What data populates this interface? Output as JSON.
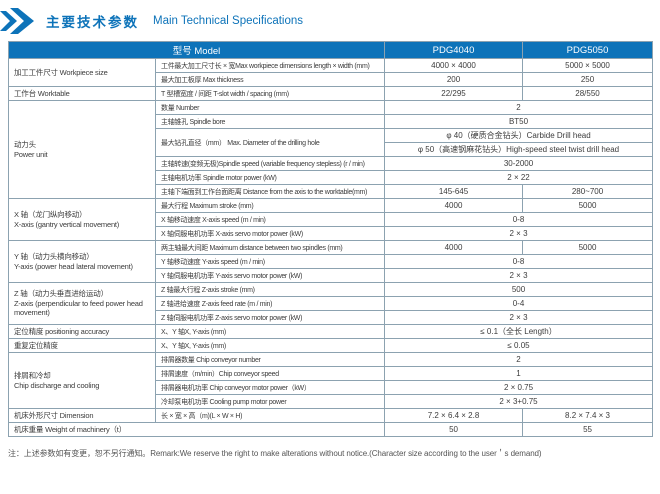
{
  "colors": {
    "brand": "#0d73b9",
    "stripe": "#cddce8",
    "border": "#8ca2b0"
  },
  "title": {
    "zh": "主要技术参数",
    "en": "Main Technical Specifications",
    "icon": "double-chevron-right-icon"
  },
  "table": {
    "header": {
      "model": "型号 Model",
      "col1": "PDG4040",
      "col2": "PDG5050"
    },
    "rows": [
      {
        "s": true,
        "cells": [
          {
            "t": "加工工件尺寸 Workpiece size",
            "r": 2,
            "k": "cats"
          },
          {
            "t": "工件最大加工尺寸长 × 宽Max workpiece dimensions length × width (mm)",
            "k": "spec"
          },
          {
            "t": "4000 × 4000",
            "k": "val"
          },
          {
            "t": "5000 × 5000",
            "k": "val"
          }
        ]
      },
      {
        "s": false,
        "cells": [
          {
            "t": "最大加工板厚 Max thickness",
            "k": "spec"
          },
          {
            "t": "200",
            "k": "val"
          },
          {
            "t": "250",
            "k": "val"
          }
        ]
      },
      {
        "s": true,
        "cells": [
          {
            "t": "工作台 Worktable",
            "k": "cats"
          },
          {
            "t": "T 型槽宽度 / 间距 T-slot width / spacing (mm)",
            "k": "spec"
          },
          {
            "t": "22/295",
            "k": "val"
          },
          {
            "t": "28/550",
            "k": "val"
          }
        ]
      },
      {
        "s": false,
        "cells": [
          {
            "t": "动力头\nPower unit",
            "r": 7,
            "k": "cat"
          },
          {
            "t": "数量 Number",
            "k": "spec"
          },
          {
            "t": "2",
            "c": 2,
            "k": "val"
          }
        ]
      },
      {
        "s": true,
        "cells": [
          {
            "t": "主轴锥孔 Spindle bore",
            "k": "spec"
          },
          {
            "t": "BT50",
            "c": 2,
            "k": "val"
          }
        ]
      },
      {
        "s": false,
        "cells": [
          {
            "t": "最大钻孔直径（mm）\nMax. Diameter of the drilling hole",
            "r": 2,
            "k": "spec"
          },
          {
            "t": "φ 40（硬质合金钻头）Carbide Drill head",
            "c": 2,
            "k": "val"
          }
        ]
      },
      {
        "s": true,
        "cells": [
          {
            "t": "φ 50（高速钢麻花钻头）High-speed steel twist drill head",
            "c": 2,
            "k": "val"
          }
        ]
      },
      {
        "s": false,
        "cells": [
          {
            "t": "主轴转速(变频无极)Spindle speed (variable frequency stepless) (r / min)",
            "k": "spec"
          },
          {
            "t": "30-2000",
            "c": 2,
            "k": "val"
          }
        ]
      },
      {
        "s": true,
        "cells": [
          {
            "t": "主轴电机功率 Spindle motor power (kW)",
            "k": "spec"
          },
          {
            "t": "2 × 22",
            "c": 2,
            "k": "val"
          }
        ]
      },
      {
        "s": false,
        "cells": [
          {
            "t": "主轴下端面到工作台面距离 Distance from the axis to the worktable(mm)",
            "k": "spec"
          },
          {
            "t": "145-645",
            "k": "val"
          },
          {
            "t": "280~700",
            "k": "val"
          }
        ]
      },
      {
        "s": true,
        "cells": [
          {
            "t": "X 轴（龙门纵向移动）\nX-axis (gantry vertical movement)",
            "r": 3,
            "k": "cats"
          },
          {
            "t": "最大行程 Maximum stroke (mm)",
            "k": "spec"
          },
          {
            "t": "4000",
            "k": "val"
          },
          {
            "t": "5000",
            "k": "val"
          }
        ]
      },
      {
        "s": false,
        "cells": [
          {
            "t": "X 轴移动速度 X-axis speed (m / min)",
            "k": "spec"
          },
          {
            "t": "0-8",
            "c": 2,
            "k": "val"
          }
        ]
      },
      {
        "s": true,
        "cells": [
          {
            "t": "X 轴伺服电机功率 X-axis servo motor power (kW)",
            "k": "spec"
          },
          {
            "t": "2 × 3",
            "c": 2,
            "k": "val"
          }
        ]
      },
      {
        "s": false,
        "cells": [
          {
            "t": "Y 轴（动力头横向移动）\nY-axis (power head lateral movement)",
            "r": 3,
            "k": "cat"
          },
          {
            "t": "两主轴最大间距 Maximum distance between two spindles (mm)",
            "k": "spec"
          },
          {
            "t": "4000",
            "k": "val"
          },
          {
            "t": "5000",
            "k": "val"
          }
        ]
      },
      {
        "s": true,
        "cells": [
          {
            "t": "Y 轴移动速度 Y-axis speed (m / min)",
            "k": "spec"
          },
          {
            "t": "0-8",
            "c": 2,
            "k": "val"
          }
        ]
      },
      {
        "s": false,
        "cells": [
          {
            "t": "Y 轴伺服电机功率 Y-axis servo motor power (kW)",
            "k": "spec"
          },
          {
            "t": "2 × 3",
            "c": 2,
            "k": "val"
          }
        ]
      },
      {
        "s": true,
        "cells": [
          {
            "t": "Z 轴（动力头垂直进给运动）\nZ-axis (perpendicular to feed power head movement)",
            "r": 3,
            "k": "cats"
          },
          {
            "t": "Z 轴最大行程 Z-axis stroke (mm)",
            "k": "spec"
          },
          {
            "t": "500",
            "c": 2,
            "k": "val"
          }
        ]
      },
      {
        "s": false,
        "cells": [
          {
            "t": "Z 轴进给速度 Z-axis feed rate (m / min)",
            "k": "spec"
          },
          {
            "t": "0-4",
            "c": 2,
            "k": "val"
          }
        ]
      },
      {
        "s": true,
        "cells": [
          {
            "t": "Z 轴伺服电机功率 Z-axis servo motor power (kW)",
            "k": "spec"
          },
          {
            "t": "2 × 3",
            "c": 2,
            "k": "val"
          }
        ]
      },
      {
        "s": false,
        "cells": [
          {
            "t": "定位精度 positioning accuracy",
            "k": "cat"
          },
          {
            "t": "X、Y 轴X, Y-axis (mm)",
            "k": "spec"
          },
          {
            "t": "≤ 0.1（全长 Length）",
            "c": 2,
            "k": "val"
          }
        ]
      },
      {
        "s": true,
        "cells": [
          {
            "t": "重复定位精度",
            "k": "cats"
          },
          {
            "t": "X、Y 轴X, Y-axis (mm)",
            "k": "spec"
          },
          {
            "t": "≤ 0.05",
            "c": 2,
            "k": "val"
          }
        ]
      },
      {
        "s": false,
        "cells": [
          {
            "t": "排屑和冷却\nChip discharge and cooling",
            "r": 4,
            "k": "cat"
          },
          {
            "t": "排屑器数量 Chip conveyor number",
            "k": "spec"
          },
          {
            "t": "2",
            "c": 2,
            "k": "val"
          }
        ]
      },
      {
        "s": true,
        "cells": [
          {
            "t": "排屑速度（m/min）Chip conveyor speed",
            "k": "spec"
          },
          {
            "t": "1",
            "c": 2,
            "k": "val"
          }
        ]
      },
      {
        "s": false,
        "cells": [
          {
            "t": "排屑器电机功率 Chip conveyor motor power（kW）",
            "k": "spec"
          },
          {
            "t": "2 × 0.75",
            "c": 2,
            "k": "val"
          }
        ]
      },
      {
        "s": true,
        "cells": [
          {
            "t": "冷却泵电机功率 Cooling pump motor power",
            "k": "spec"
          },
          {
            "t": "2 × 3+0.75",
            "c": 2,
            "k": "val"
          }
        ]
      },
      {
        "s": false,
        "cells": [
          {
            "t": "机床外形尺寸 Dimension",
            "k": "cat"
          },
          {
            "t": "长 × 宽 × 高（m)(L × W × H)",
            "k": "spec"
          },
          {
            "t": "7.2 × 6.4 × 2.8",
            "k": "val"
          },
          {
            "t": "8.2 × 7.4 × 3",
            "k": "val"
          }
        ]
      },
      {
        "s": true,
        "cells": [
          {
            "t": "机床重量 Weight of machinery（t）",
            "c": 2,
            "k": "cats"
          },
          {
            "t": "50",
            "k": "val"
          },
          {
            "t": "55",
            "k": "val"
          }
        ]
      }
    ]
  },
  "footer": {
    "note": "注：上述参数如有变更，恕不另行通知。Remark:We reserve the right to make alterations without notice.(Character size according to the user＇s demand)"
  }
}
